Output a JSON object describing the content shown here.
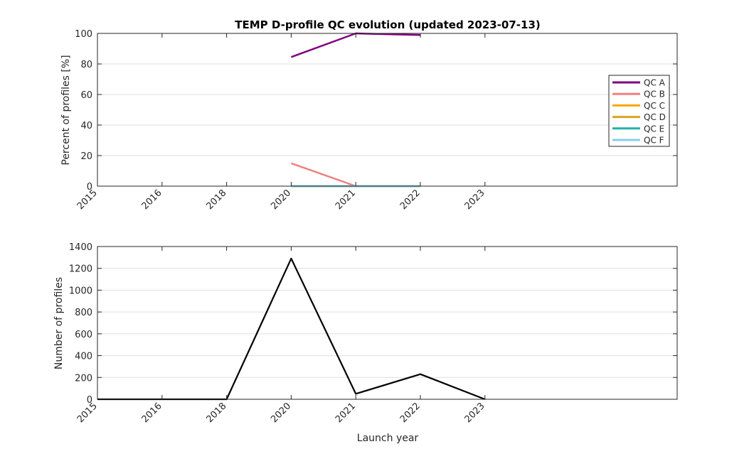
{
  "chart_data": [
    {
      "type": "line",
      "title": "TEMP D-profile QC evolution (updated 2023-07-13)",
      "xlabel": "",
      "ylabel": "Percent of profiles [%]",
      "x_tick_labels": [
        "2015",
        "2016",
        "2018",
        "2020",
        "2021",
        "2022",
        "2023"
      ],
      "ylim": [
        0,
        100
      ],
      "y_ticks": [
        0,
        20,
        40,
        60,
        80,
        100
      ],
      "grid": "horizontal",
      "legend_placement": "right",
      "series": [
        {
          "name": "QC A",
          "color": "#800080",
          "points": [
            [
              3,
              84.5
            ],
            [
              4,
              100
            ],
            [
              5,
              99
            ]
          ]
        },
        {
          "name": "QC B",
          "color": "#f08080",
          "points": [
            [
              3,
              15
            ],
            [
              4,
              0
            ],
            [
              5,
              0
            ]
          ]
        },
        {
          "name": "QC C",
          "color": "#ffa500",
          "points": [
            [
              3,
              0
            ],
            [
              4,
              0
            ],
            [
              5,
              0
            ]
          ]
        },
        {
          "name": "QC D",
          "color": "#daa520",
          "points": [
            [
              3,
              0
            ],
            [
              4,
              0
            ],
            [
              5,
              0
            ]
          ]
        },
        {
          "name": "QC E",
          "color": "#20b2aa",
          "points": [
            [
              3,
              0
            ],
            [
              4,
              0
            ],
            [
              5,
              0
            ]
          ]
        },
        {
          "name": "QC F",
          "color": "#87ceeb",
          "points": [
            [
              3,
              0
            ],
            [
              4,
              0
            ],
            [
              5,
              0
            ]
          ]
        }
      ]
    },
    {
      "type": "line",
      "title": "",
      "xlabel": "Launch year",
      "ylabel": "Number of profiles",
      "x_tick_labels": [
        "2015",
        "2016",
        "2018",
        "2020",
        "2021",
        "2022",
        "2023"
      ],
      "ylim": [
        0,
        1400
      ],
      "y_ticks": [
        0,
        200,
        400,
        600,
        800,
        1000,
        1200,
        1400
      ],
      "grid": "horizontal",
      "series": [
        {
          "color": "#000000",
          "points": [
            [
              0,
              0
            ],
            [
              1,
              0
            ],
            [
              2,
              0
            ],
            [
              3,
              1290
            ],
            [
              4,
              50
            ],
            [
              5,
              230
            ],
            [
              6,
              0
            ]
          ]
        }
      ]
    }
  ]
}
